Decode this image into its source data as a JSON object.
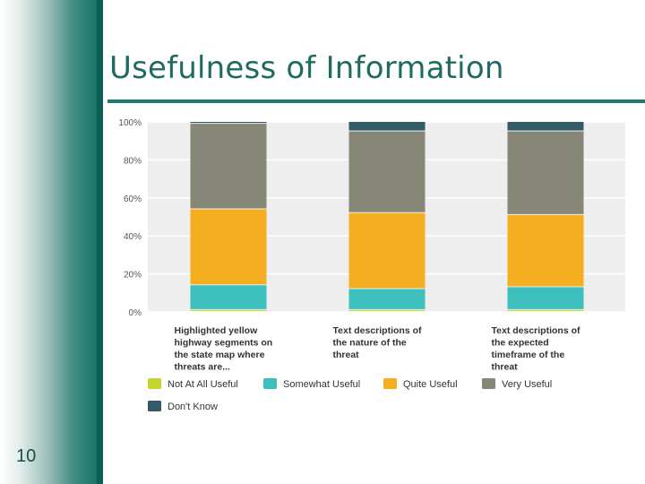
{
  "slide": {
    "title": "Usefulness of Information",
    "number": "10"
  },
  "colors": {
    "sidebar": "#0f6f63",
    "title": "#1f6b62",
    "plot_bg": "#eeeeee",
    "grid": "#ffffff"
  },
  "chart_data": {
    "type": "bar",
    "stacked": true,
    "title": "",
    "xlabel": "",
    "ylabel": "",
    "ylim": [
      0,
      100
    ],
    "y_ticks": [
      "0%",
      "20%",
      "40%",
      "60%",
      "80%",
      "100%"
    ],
    "categories": [
      [
        "Highlighted yellow",
        "highway segments on",
        "the state map where",
        "threats are..."
      ],
      [
        "Text descriptions of",
        "the nature of the",
        "threat"
      ],
      [
        "Text descriptions of",
        "the expected",
        "timeframe of the",
        "threat"
      ]
    ],
    "series": [
      {
        "name": "Not At All Useful",
        "color": "#c5d52f",
        "values": [
          1,
          1,
          1
        ]
      },
      {
        "name": "Somewhat Useful",
        "color": "#3cbfbd",
        "values": [
          13,
          11,
          12
        ]
      },
      {
        "name": "Quite Useful",
        "color": "#f5ae1f",
        "values": [
          40,
          40,
          38
        ]
      },
      {
        "name": "Very Useful",
        "color": "#878778",
        "values": [
          45,
          43,
          44
        ]
      },
      {
        "name": "Don't Know",
        "color": "#335a67",
        "values": [
          1,
          5,
          5
        ]
      }
    ],
    "legend_position": "bottom"
  }
}
